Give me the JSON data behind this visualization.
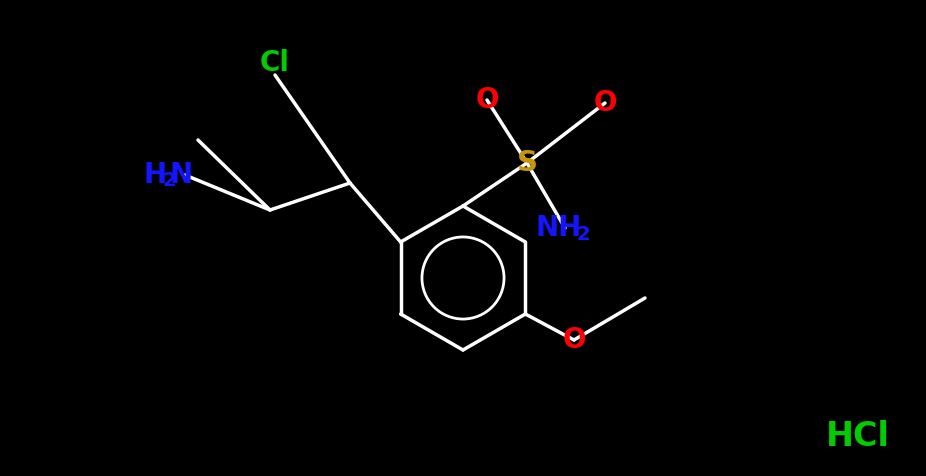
{
  "bg": "#000000",
  "bond_color": "#ffffff",
  "bond_lw": 2.5,
  "colors": {
    "N": "#1414ff",
    "O": "#ff0000",
    "S": "#c8960c",
    "Cl_green": "#00cc00",
    "Cl_hcl": "#00cc00"
  },
  "font_size": 20,
  "font_size_sub": 14,
  "HCl_font_size": 24
}
